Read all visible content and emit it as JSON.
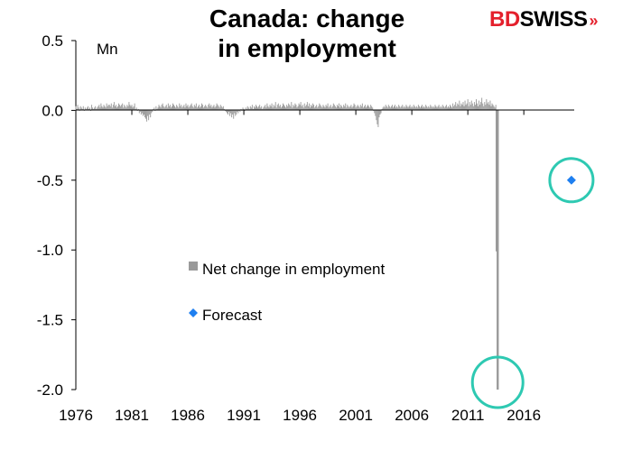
{
  "header": {
    "title_line1": "Canada: change",
    "title_line2": "in employment",
    "logo_part1": "BD",
    "logo_part2": "SWISS",
    "logo_arrow": "»"
  },
  "colors": {
    "bars": "#9a9a9a",
    "forecast": "#1e7ff0",
    "highlight_circle": "#2ec9b2",
    "logo_red": "#e4202c"
  },
  "chart_data": {
    "type": "bar",
    "ylabel": "Mn",
    "ylim": [
      -2.0,
      0.5
    ],
    "yticks": [
      0.5,
      0.0,
      -0.5,
      -1.0,
      -1.5,
      -2.0
    ],
    "ytick_labels": [
      "0.5",
      "0.0",
      "-0.5",
      "-1.0",
      "-1.5",
      "-2.0"
    ],
    "xlim": [
      1976,
      2020.5
    ],
    "xticks": [
      1976,
      1981,
      1986,
      1991,
      1996,
      2001,
      2006,
      2011,
      2016
    ],
    "xtick_labels": [
      "1976",
      "1981",
      "1986",
      "1991",
      "1996",
      "2001",
      "2006",
      "2011",
      "2016"
    ],
    "legend": {
      "placement": "center-left"
    },
    "series": [
      {
        "name": "Net change in employment",
        "kind": "bar",
        "monthly_from": [
          1976,
          1
        ],
        "values": [
          0.03,
          0.01,
          0.04,
          0.02,
          0.0,
          0.03,
          0.02,
          0.01,
          0.03,
          0.0,
          0.02,
          0.01,
          0.02,
          0.03,
          0.01,
          0.02,
          0.0,
          0.04,
          0.02,
          0.01,
          0.02,
          0.03,
          0.01,
          0.02,
          0.03,
          0.04,
          0.02,
          0.05,
          0.03,
          0.02,
          0.04,
          0.03,
          0.02,
          0.05,
          0.03,
          0.04,
          0.04,
          0.03,
          0.05,
          0.02,
          0.04,
          0.06,
          0.03,
          0.04,
          0.02,
          0.03,
          0.05,
          0.04,
          0.03,
          0.04,
          0.05,
          0.02,
          0.04,
          0.03,
          0.02,
          0.04,
          0.03,
          0.06,
          0.04,
          0.03,
          0.04,
          0.02,
          0.03,
          0.05,
          0.01,
          0.02,
          0.0,
          0.01,
          -0.02,
          -0.01,
          -0.03,
          -0.02,
          -0.04,
          -0.03,
          -0.05,
          -0.06,
          -0.08,
          -0.04,
          -0.07,
          -0.03,
          -0.05,
          -0.02,
          -0.01,
          0.01,
          0.02,
          0.0,
          0.03,
          0.01,
          0.02,
          0.04,
          0.03,
          0.02,
          0.04,
          0.05,
          0.03,
          0.02,
          0.03,
          0.04,
          0.02,
          0.05,
          0.03,
          0.04,
          0.02,
          0.03,
          0.05,
          0.04,
          0.03,
          0.02,
          0.04,
          0.03,
          0.02,
          0.05,
          0.03,
          0.04,
          0.02,
          0.03,
          0.04,
          0.02,
          0.05,
          0.03,
          0.04,
          0.02,
          0.03,
          0.04,
          0.05,
          0.03,
          0.02,
          0.04,
          0.03,
          0.05,
          0.02,
          0.03,
          0.04,
          0.02,
          0.03,
          0.05,
          0.04,
          0.02,
          0.03,
          0.04,
          0.03,
          0.02,
          0.04,
          0.05,
          0.03,
          0.04,
          0.02,
          0.03,
          0.04,
          0.02,
          0.03,
          0.05,
          0.04,
          0.03,
          0.02,
          0.04,
          0.03,
          0.02,
          0.03,
          0.01,
          0.0,
          -0.01,
          -0.02,
          -0.03,
          -0.01,
          -0.04,
          -0.02,
          -0.05,
          -0.03,
          -0.06,
          -0.02,
          -0.04,
          -0.03,
          -0.01,
          -0.02,
          0.0,
          -0.01,
          0.01,
          0.0,
          0.02,
          0.01,
          0.0,
          0.02,
          0.01,
          0.03,
          0.02,
          0.01,
          0.03,
          0.02,
          0.04,
          0.01,
          0.03,
          0.02,
          0.04,
          0.03,
          0.02,
          0.03,
          0.04,
          0.02,
          0.03,
          0.01,
          0.02,
          0.03,
          0.04,
          0.02,
          0.05,
          0.03,
          0.02,
          0.04,
          0.03,
          0.05,
          0.02,
          0.04,
          0.03,
          0.06,
          0.02,
          0.04,
          0.05,
          0.03,
          0.04,
          0.02,
          0.03,
          0.05,
          0.04,
          0.03,
          0.02,
          0.04,
          0.03,
          0.05,
          0.04,
          0.03,
          0.06,
          0.02,
          0.04,
          0.03,
          0.05,
          0.04,
          0.02,
          0.03,
          0.05,
          0.04,
          0.06,
          0.03,
          0.04,
          0.02,
          0.05,
          0.03,
          0.04,
          0.06,
          0.03,
          0.05,
          0.02,
          0.04,
          0.03,
          0.05,
          0.04,
          0.02,
          0.03,
          0.04,
          0.02,
          0.03,
          0.05,
          0.04,
          0.03,
          0.02,
          0.04,
          0.03,
          0.02,
          0.04,
          0.03,
          0.05,
          0.02,
          0.03,
          0.04,
          0.02,
          0.03,
          0.05,
          0.04,
          0.03,
          0.02,
          0.04,
          0.03,
          0.05,
          0.02,
          0.04,
          0.03,
          0.02,
          0.04,
          0.03,
          0.05,
          0.02,
          0.04,
          0.03,
          0.02,
          0.03,
          0.04,
          0.02,
          0.03,
          0.05,
          0.04,
          0.02,
          0.03,
          0.04,
          0.03,
          0.02,
          0.04,
          0.03,
          0.05,
          0.02,
          0.03,
          0.04,
          0.02,
          0.03,
          0.04,
          0.03,
          0.02,
          0.04,
          0.03,
          0.02,
          0.0,
          -0.02,
          -0.04,
          -0.07,
          -0.1,
          -0.12,
          -0.05,
          -0.03,
          -0.02,
          0.01,
          0.02,
          0.03,
          0.02,
          0.04,
          0.03,
          0.02,
          0.04,
          0.03,
          0.02,
          0.03,
          0.04,
          0.02,
          0.03,
          0.04,
          0.02,
          0.03,
          0.02,
          0.04,
          0.03,
          0.02,
          0.03,
          0.04,
          0.02,
          0.03,
          0.02,
          0.04,
          0.03,
          0.02,
          0.03,
          0.04,
          0.02,
          0.03,
          0.02,
          0.04,
          0.03,
          0.02,
          0.03,
          0.02,
          0.04,
          0.03,
          0.02,
          0.03,
          0.04,
          0.02,
          0.03,
          0.02,
          0.04,
          0.03,
          0.02,
          0.03,
          0.02,
          0.04,
          0.03,
          0.02,
          0.03,
          0.02,
          0.04,
          0.03,
          0.02,
          0.03,
          0.04,
          0.02,
          0.03,
          0.02,
          0.04,
          0.03,
          0.02,
          0.03,
          0.04,
          0.02,
          0.03,
          0.02,
          0.04,
          0.03,
          0.02,
          0.05,
          0.03,
          0.04,
          0.06,
          0.03,
          0.05,
          0.04,
          0.07,
          0.03,
          0.05,
          0.04,
          0.06,
          0.03,
          0.07,
          0.04,
          0.05,
          0.08,
          0.03,
          0.06,
          0.04,
          0.07,
          0.05,
          0.03,
          0.06,
          0.04,
          0.08,
          0.05,
          0.03,
          0.07,
          0.04,
          0.06,
          0.09,
          0.05,
          0.03,
          0.06,
          0.04,
          0.08,
          0.05,
          0.06,
          0.04,
          0.07,
          0.03,
          0.05,
          0.04,
          0.03,
          0.02,
          0.04,
          -1.01,
          -2.0
        ]
      },
      {
        "name": "Forecast",
        "kind": "marker",
        "x": 2020.25,
        "y": -0.5
      }
    ]
  }
}
